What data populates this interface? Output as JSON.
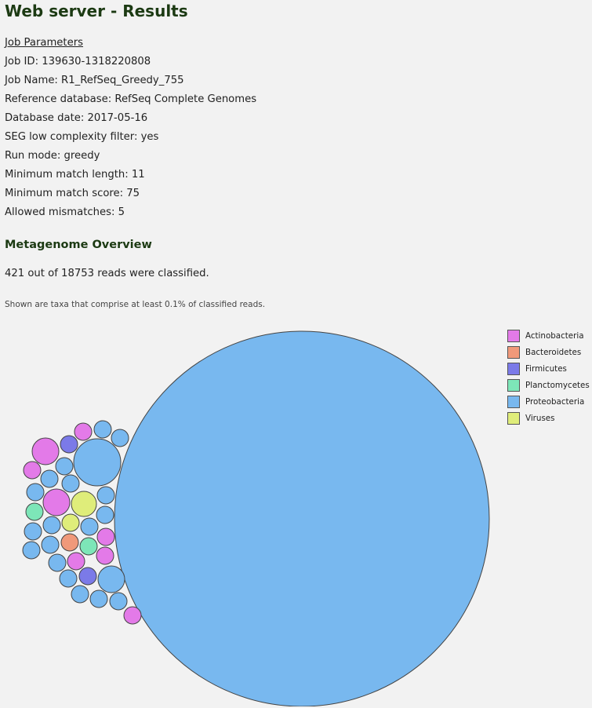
{
  "title": "Web server - Results",
  "job_parameters": {
    "heading": "Job Parameters",
    "rows": [
      "Job ID: 139630-1318220808",
      "Job Name: R1_RefSeq_Greedy_755",
      "Reference database: RefSeq Complete Genomes",
      "Database date: 2017-05-16",
      "SEG low complexity filter: yes",
      "Run mode: greedy",
      "Minimum match length: 11",
      "Minimum match score: 75",
      "Allowed mismatches: 5"
    ]
  },
  "overview": {
    "heading": "Metagenome Overview",
    "classified": "421 out of 18753 reads were classified.",
    "note": "Shown are taxa that comprise at least 0.1% of classified reads."
  },
  "legend": [
    {
      "label": "Actinobacteria",
      "color": "#e37ae8"
    },
    {
      "label": "Bacteroidetes",
      "color": "#f0997a"
    },
    {
      "label": "Firmicutes",
      "color": "#7b7ae8"
    },
    {
      "label": "Planctomycetes",
      "color": "#7de6b8"
    },
    {
      "label": "Proteobacteria",
      "color": "#78b8ef"
    },
    {
      "label": "Viruses",
      "color": "#dfed7a"
    }
  ]
}
